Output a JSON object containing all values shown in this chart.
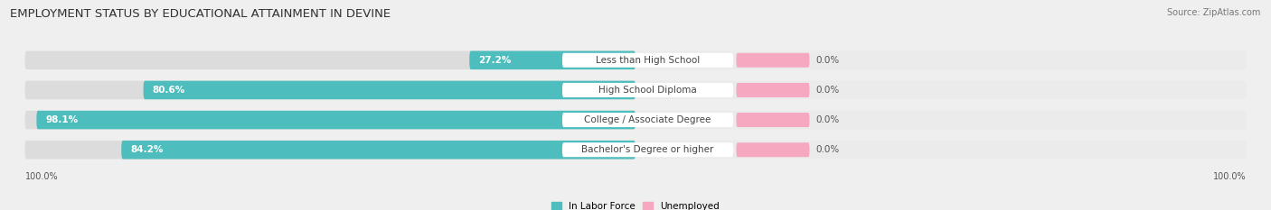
{
  "title": "EMPLOYMENT STATUS BY EDUCATIONAL ATTAINMENT IN DEVINE",
  "source": "Source: ZipAtlas.com",
  "categories": [
    "Less than High School",
    "High School Diploma",
    "College / Associate Degree",
    "Bachelor's Degree or higher"
  ],
  "labor_force_pct": [
    27.2,
    80.6,
    98.1,
    84.2
  ],
  "unemployed_pct": [
    0.0,
    0.0,
    0.0,
    0.0
  ],
  "left_axis_label": "100.0%",
  "right_axis_label": "100.0%",
  "bar_color_labor": "#4DBDBD",
  "bar_color_unemployed": "#F5A8C0",
  "bg_color": "#EFEFEF",
  "bar_bg_color_left": "#DCDCDC",
  "bar_bg_color_right": "#EBEBEB",
  "title_fontsize": 9.5,
  "source_fontsize": 7,
  "label_fontsize": 7.5,
  "bar_label_fontsize": 7.5,
  "axis_label_fontsize": 7
}
